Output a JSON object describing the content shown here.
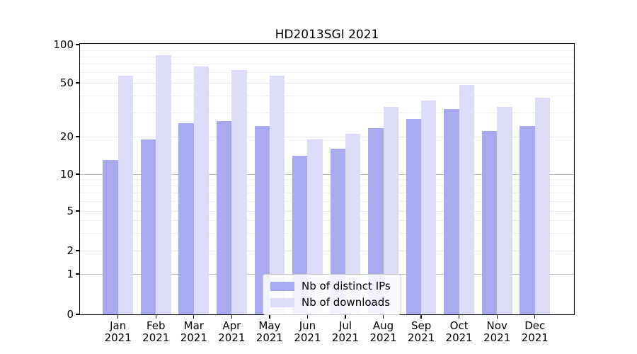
{
  "chart_data": {
    "type": "bar",
    "title": "HD2013SGI 2021",
    "categories": [
      "Jan\n2021",
      "Feb\n2021",
      "Mar\n2021",
      "Apr\n2021",
      "May\n2021",
      "Jun\n2021",
      "Jul\n2021",
      "Aug\n2021",
      "Sep\n2021",
      "Oct\n2021",
      "Nov\n2021",
      "Dec\n2021"
    ],
    "series": [
      {
        "name": "Nb of distinct IPs",
        "color": "#a9a9f0",
        "values": [
          13,
          19,
          25,
          26,
          24,
          14,
          16,
          23,
          27,
          32,
          22,
          24
        ]
      },
      {
        "name": "Nb of downloads",
        "color": "#dcdcf9",
        "values": [
          57,
          82,
          67,
          63,
          57,
          19,
          21,
          33,
          37,
          48,
          33,
          39
        ]
      }
    ],
    "xlabel": "",
    "ylabel": "",
    "yscale": "log-like (symlog)",
    "ylim": [
      0,
      100
    ],
    "y_ticks": [
      0,
      1,
      2,
      5,
      10,
      20,
      50,
      100
    ],
    "y_minor_gridlines": [
      3,
      4,
      6,
      7,
      8,
      9,
      30,
      40,
      60,
      70,
      80,
      90
    ],
    "grid": true,
    "legend_position": "lower center",
    "colors": {
      "spine": "#000000",
      "major_grid": "#bdbdbd",
      "minor_grid": "#f0f0f0",
      "background": "#ffffff"
    }
  }
}
